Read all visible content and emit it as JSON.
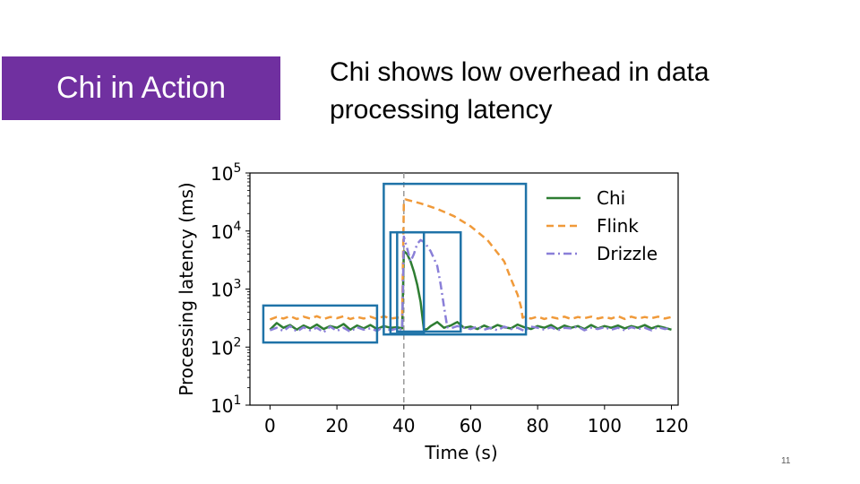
{
  "slide": {
    "title": "Chi in Action",
    "subtitle_line1": "Chi shows low overhead in data",
    "subtitle_line2": "processing latency",
    "page_number": "11",
    "accent_color": "#7030a0"
  },
  "chart_data": {
    "type": "line",
    "title": "",
    "xlabel": "Time (s)",
    "ylabel": "Processing latency (ms)",
    "xlim": [
      -6,
      122
    ],
    "ylim": [
      10,
      100000
    ],
    "yscale": "log",
    "xticks": [
      0,
      20,
      40,
      60,
      80,
      100,
      120
    ],
    "ytick_labels": [
      {
        "base": "10",
        "exp": "1",
        "value": 10
      },
      {
        "base": "10",
        "exp": "2",
        "value": 100
      },
      {
        "base": "10",
        "exp": "3",
        "value": 1000
      },
      {
        "base": "10",
        "exp": "4",
        "value": 10000
      },
      {
        "base": "10",
        "exp": "5",
        "value": 100000
      }
    ],
    "grid": false,
    "legend": "top-right",
    "event_line_x": 40,
    "series": [
      {
        "name": "Chi",
        "color": "#2e7d32",
        "dash": "solid",
        "x": [
          0,
          2,
          4,
          6,
          8,
          10,
          12,
          14,
          16,
          18,
          20,
          22,
          24,
          26,
          28,
          30,
          32,
          34,
          36,
          38,
          39.5,
          40,
          41,
          42,
          43,
          44,
          45,
          46,
          47,
          48,
          50,
          52,
          54,
          56,
          58,
          60,
          62,
          64,
          66,
          68,
          70,
          72,
          74,
          76,
          78,
          80,
          82,
          84,
          86,
          88,
          90,
          92,
          94,
          96,
          98,
          100,
          102,
          104,
          106,
          108,
          110,
          112,
          114,
          116,
          118,
          120
        ],
        "y": [
          200,
          260,
          215,
          240,
          200,
          235,
          210,
          245,
          205,
          230,
          215,
          250,
          200,
          235,
          210,
          240,
          205,
          230,
          215,
          220,
          210,
          4500,
          4000,
          3000,
          2000,
          1200,
          600,
          200,
          205,
          230,
          270,
          215,
          235,
          270,
          215,
          225,
          205,
          235,
          210,
          240,
          220,
          210,
          245,
          220,
          205,
          230,
          215,
          240,
          205,
          235,
          215,
          230,
          205,
          240,
          210,
          230,
          215,
          235,
          210,
          230,
          215,
          240,
          210,
          230,
          215,
          200
        ]
      },
      {
        "name": "Flink",
        "color": "#f09a3a",
        "dash": "dashed",
        "x": [
          0,
          2,
          4,
          6,
          8,
          10,
          12,
          14,
          16,
          18,
          20,
          22,
          24,
          26,
          28,
          30,
          32,
          34,
          36,
          38,
          39.5,
          40,
          40.5,
          45,
          50,
          55,
          60,
          65,
          70,
          72,
          74,
          75,
          75.5,
          76,
          78,
          80,
          82,
          84,
          86,
          88,
          90,
          92,
          94,
          96,
          98,
          100,
          102,
          104,
          106,
          108,
          110,
          112,
          114,
          116,
          118,
          120
        ],
        "y": [
          300,
          330,
          310,
          340,
          305,
          335,
          310,
          340,
          305,
          330,
          315,
          340,
          305,
          330,
          310,
          335,
          305,
          340,
          310,
          320,
          330,
          30000,
          35000,
          30000,
          24000,
          18000,
          12000,
          7000,
          3000,
          1500,
          800,
          500,
          320,
          330,
          310,
          335,
          305,
          330,
          310,
          335,
          305,
          330,
          315,
          335,
          310,
          330,
          310,
          340,
          305,
          335,
          310,
          330,
          315,
          335,
          310,
          330
        ]
      },
      {
        "name": "Drizzle",
        "color": "#8a7fd8",
        "dash": "dashdot",
        "x": [
          0,
          2,
          4,
          6,
          8,
          10,
          12,
          14,
          16,
          18,
          20,
          22,
          24,
          26,
          28,
          30,
          32,
          34,
          36,
          38,
          39.5,
          40,
          41,
          42,
          43,
          44,
          45,
          46,
          47,
          48,
          50,
          51,
          52,
          53,
          54,
          56,
          58,
          60,
          62,
          64,
          66,
          68,
          70,
          72,
          74,
          76,
          78,
          80,
          82,
          84,
          86,
          88,
          90,
          92,
          94,
          96,
          98,
          100,
          102,
          104,
          106,
          108,
          110,
          112,
          114,
          116,
          118,
          120
        ],
        "y": [
          195,
          215,
          190,
          230,
          185,
          220,
          195,
          215,
          180,
          225,
          190,
          215,
          185,
          220,
          200,
          210,
          190,
          225,
          195,
          210,
          200,
          8000,
          5000,
          3000,
          4000,
          6000,
          7000,
          6500,
          5500,
          4500,
          2500,
          1200,
          500,
          220,
          210,
          230,
          215,
          205,
          225,
          200,
          215,
          195,
          225,
          205,
          215,
          190,
          225,
          215,
          200,
          220,
          195,
          215,
          210,
          225,
          195,
          215,
          205,
          220,
          200,
          215,
          195,
          220,
          205,
          215,
          195,
          220,
          205,
          215
        ]
      }
    ],
    "highlight_boxes": [
      {
        "x0": -2,
        "x1": 32,
        "y0": 120,
        "y1": 520
      },
      {
        "x0": 34,
        "x1": 76.5,
        "y0": 165,
        "y1": 65000
      },
      {
        "x0": 36,
        "x1": 46,
        "y0": 170,
        "y1": 9500
      },
      {
        "x0": 38,
        "x1": 57,
        "y0": 185,
        "y1": 9500
      }
    ],
    "highlight_color": "#1f73a8"
  }
}
